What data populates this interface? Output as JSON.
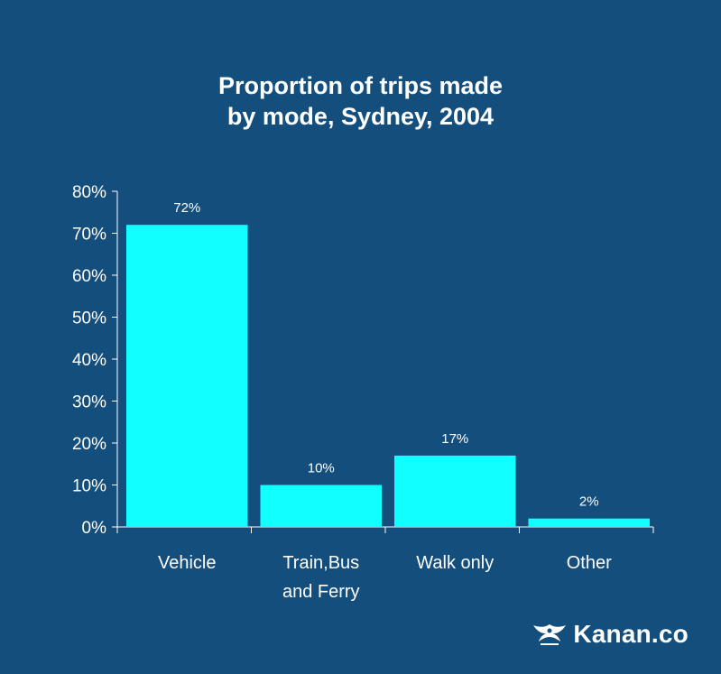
{
  "chart_data": {
    "type": "bar",
    "title_lines": [
      "Proportion of trips made",
      "by mode, Sydney, 2004"
    ],
    "categories": [
      [
        "Vehicle"
      ],
      [
        "Train,Bus",
        "and Ferry"
      ],
      [
        "Walk only"
      ],
      [
        "Other"
      ]
    ],
    "values": [
      72,
      10,
      17,
      2
    ],
    "value_labels": [
      "72%",
      "10%",
      "17%",
      "2%"
    ],
    "ylim": [
      0,
      80
    ],
    "yticks": [
      0,
      10,
      20,
      30,
      40,
      50,
      60,
      70,
      80
    ],
    "ytick_labels": [
      "0%",
      "10%",
      "20%",
      "30%",
      "40%",
      "50%",
      "60%",
      "70%",
      "80%"
    ],
    "xlabel": "",
    "ylabel": "",
    "grid": false,
    "colors": {
      "bar": "#12ffff",
      "background": "#134e7c",
      "axis": "#ffffff"
    }
  },
  "brand": {
    "name": "Kanan.co",
    "logo_icon": "kanan-logo-icon"
  }
}
